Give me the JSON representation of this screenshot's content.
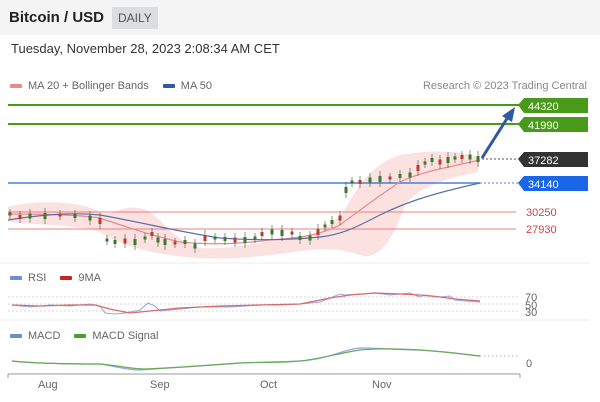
{
  "header": {
    "title": "Bitcoin / USD",
    "period": "DAILY"
  },
  "timestamp": "Tuesday, November 28, 2023 2:08:34 AM CET",
  "credit": "Research © 2023 Trading Central",
  "legends": {
    "price": [
      {
        "label": "MA 20 + Bollinger Bands",
        "color": "#e88a8a"
      },
      {
        "label": "MA 50",
        "color": "#2d5aa0"
      }
    ],
    "rsi": [
      {
        "label": "RSI",
        "color": "#6b8fd6"
      },
      {
        "label": "9MA",
        "color": "#cc2222"
      }
    ],
    "macd": [
      {
        "label": "MACD",
        "color": "#6b8fd6"
      },
      {
        "label": "MACD Signal",
        "color": "#4aa02c"
      }
    ]
  },
  "colors": {
    "resistance": "#4a9a1a",
    "support_line": "#4a7fd6",
    "support_badge": "#1a66e8",
    "current": "#333333",
    "pivot": "#e06060"
  },
  "chart_data": [
    {
      "type": "candlestick",
      "title": "Bitcoin / USD",
      "subtitle": "DAILY",
      "xlabel": "",
      "ylabel": "",
      "x_ticks": [
        "Aug",
        "Sep",
        "Oct",
        "Nov"
      ],
      "levels": [
        {
          "value": 44320,
          "kind": "resistance",
          "label": "44320"
        },
        {
          "value": 41990,
          "kind": "resistance",
          "label": "41990"
        },
        {
          "value": 37282,
          "kind": "current",
          "label": "37282"
        },
        {
          "value": 34140,
          "kind": "support",
          "label": "34140"
        },
        {
          "value": 30250,
          "kind": "pivot",
          "label": "30250"
        },
        {
          "value": 27930,
          "kind": "pivot",
          "label": "27930"
        }
      ],
      "approx_close_by_month": {
        "Jul-end": 29300,
        "Aug-mid": 29200,
        "Aug-late": 26000,
        "Sep": 26200,
        "Oct-start": 27500,
        "Oct-late": 34500,
        "Nov": 36500,
        "Nov-28": 37282
      },
      "indicators": [
        "MA 20 + Bollinger Bands",
        "MA 50"
      ],
      "annotation": "Arrow pointing up toward 44320",
      "legend_position": "top-left"
    },
    {
      "type": "line",
      "title": "RSI",
      "series": [
        {
          "name": "RSI"
        },
        {
          "name": "9MA"
        }
      ],
      "y_ticks": [
        "70",
        "50",
        "30"
      ]
    },
    {
      "type": "line",
      "title": "MACD",
      "series": [
        {
          "name": "MACD"
        },
        {
          "name": "MACD Signal"
        }
      ],
      "y_ticks": [
        "0"
      ]
    }
  ],
  "axis": {
    "x_ticks": [
      "Aug",
      "Sep",
      "Oct",
      "Nov"
    ],
    "rsi_ticks": [
      "70",
      "50",
      "30"
    ],
    "macd_ticks": [
      "0"
    ]
  }
}
